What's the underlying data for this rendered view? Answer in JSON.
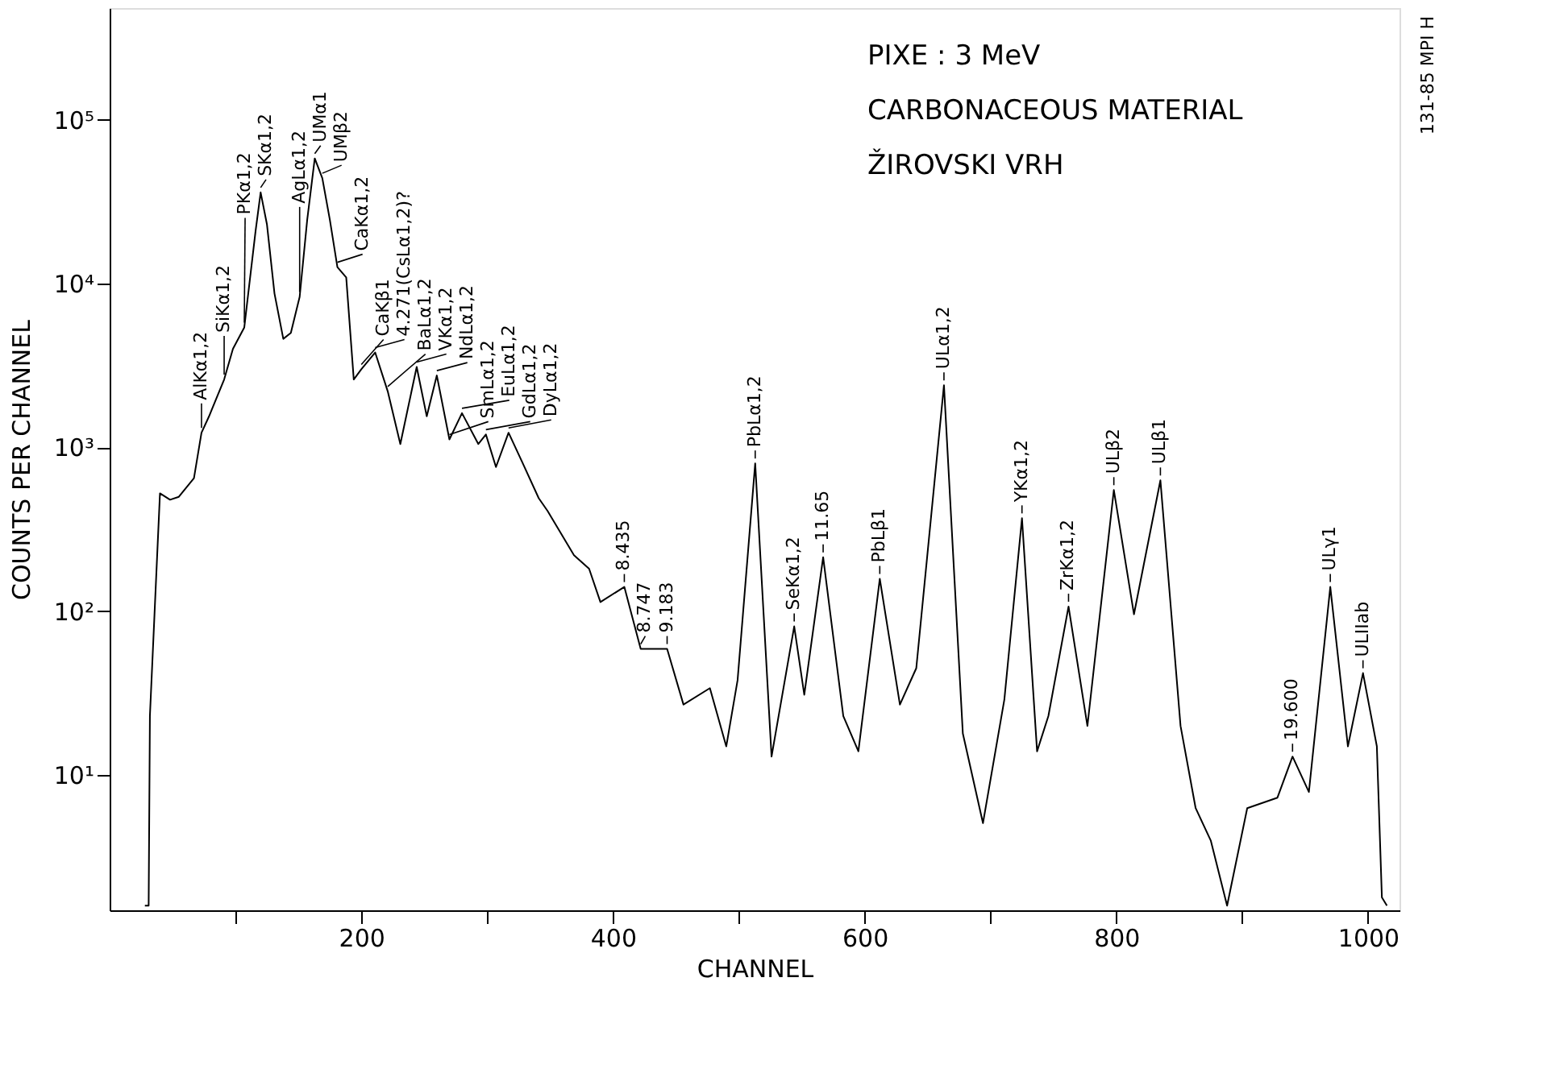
{
  "chart_data": {
    "type": "line",
    "xlabel": "CHANNEL",
    "ylabel": "COUNTS PER CHANNEL",
    "log": "y",
    "grid": false,
    "marker": "none",
    "line_style": "solid",
    "xlim": [
      0,
      1025
    ],
    "ylim": [
      1.5,
      480000
    ],
    "xticks": [
      {
        "value": 100,
        "label": null
      },
      200,
      {
        "value": 300,
        "label": null
      },
      400,
      {
        "value": 500,
        "label": null
      },
      600,
      {
        "value": 700,
        "label": null
      },
      800,
      {
        "value": 900,
        "label": null
      },
      1000
    ],
    "yticks": [
      {
        "value": 10,
        "label": "10¹"
      },
      {
        "value": 100,
        "label": "10²"
      },
      {
        "value": 1000,
        "label": "10³"
      },
      {
        "value": 10000,
        "label": "10⁴"
      },
      {
        "value": 100000,
        "label": "10⁵"
      }
    ],
    "series": [
      {
        "color": "#000000",
        "x": [
          28,
          31,
          32,
          40,
          48,
          55,
          67,
          73,
          79,
          91,
          98,
          107,
          116,
          120,
          125,
          131,
          138,
          144,
          151,
          157,
          163,
          169,
          175,
          181,
          188,
          194,
          200,
          211,
          221,
          231,
          244,
          252,
          260,
          270,
          280,
          293,
          299,
          307,
          317,
          328,
          341,
          348,
          369,
          381,
          390,
          409,
          422,
          443,
          456,
          477,
          490,
          499,
          513,
          526,
          544,
          552,
          567,
          583,
          595,
          612,
          628,
          641,
          663,
          678,
          694,
          711,
          725,
          737,
          746,
          762,
          777,
          798,
          814,
          835,
          851,
          863,
          875,
          888,
          904,
          928,
          940,
          953,
          970,
          984,
          996,
          1007,
          1011,
          1015
        ],
        "values": [
          1.6,
          1.6,
          23,
          525,
          480,
          500,
          650,
          1230,
          1550,
          2600,
          4000,
          5400,
          21000,
          36000,
          23000,
          8700,
          4600,
          5000,
          8300,
          24500,
          58000,
          44000,
          24500,
          12600,
          10900,
          2600,
          3000,
          3800,
          2200,
          1050,
          3100,
          1550,
          2750,
          1120,
          1620,
          1050,
          1200,
          760,
          1230,
          810,
          490,
          410,
          220,
          182,
          114,
          141,
          59,
          59,
          27,
          34,
          15,
          38,
          800,
          13,
          81,
          31,
          214,
          23,
          14,
          158,
          27,
          45,
          2400,
          18,
          5.1,
          29,
          370,
          14,
          23,
          107,
          20,
          550,
          96,
          630,
          20,
          6.3,
          4,
          1.6,
          6.3,
          7.3,
          13,
          7.9,
          141,
          15,
          42,
          15,
          1.8,
          1.6
        ]
      }
    ],
    "annotations": [
      "PIXE : 3 MeV",
      "CARBONACEOUS MATERIAL",
      "ŽIROVSKI VRH",
      "131-85 MPI H",
      {
        "text": "AlKα1,2",
        "x": 73,
        "y": 1230
      },
      {
        "text": "SiKα1,2",
        "x": 91,
        "y": 2600
      },
      {
        "text": "PKα1,2",
        "x": 107,
        "y": 5400
      },
      {
        "text": "SKα1,2",
        "x": 120,
        "y": 36000
      },
      {
        "text": "AgLα1,2",
        "x": 151,
        "y": 8300
      },
      {
        "text": "UMα1",
        "x": 163,
        "y": 58000
      },
      {
        "text": "UMβ2",
        "x": 169,
        "y": 44000
      },
      {
        "text": "CaKα1,2",
        "x": 181,
        "y": 12600
      },
      {
        "text": "CaKβ1",
        "x": 200,
        "y": 3000
      },
      {
        "text": "4.271(CsLα1,2)?",
        "x": 211,
        "y": 3800
      },
      {
        "text": "BaLα1,2",
        "x": 221,
        "y": 2200
      },
      {
        "text": "VKα1,2",
        "x": 244,
        "y": 3100
      },
      {
        "text": "NdLα1,2",
        "x": 260,
        "y": 2750
      },
      {
        "text": "SmLα1,2",
        "x": 270,
        "y": 1120
      },
      {
        "text": "EuLα1,2",
        "x": 280,
        "y": 1620
      },
      {
        "text": "GdLα1,2",
        "x": 299,
        "y": 1200
      },
      {
        "text": "DyLα1,2",
        "x": 317,
        "y": 1230
      },
      {
        "text": "8.435",
        "x": 409,
        "y": 141
      },
      {
        "text": "8.747",
        "x": 422,
        "y": 59
      },
      {
        "text": "9.183",
        "x": 443,
        "y": 59
      },
      {
        "text": "PbLα1,2",
        "x": 513,
        "y": 800
      },
      {
        "text": "SeKα1,2",
        "x": 544,
        "y": 81
      },
      {
        "text": "11.65",
        "x": 567,
        "y": 214
      },
      {
        "text": "PbLβ1",
        "x": 612,
        "y": 158
      },
      {
        "text": "ULα1,2",
        "x": 663,
        "y": 2400
      },
      {
        "text": "YKα1,2",
        "x": 725,
        "y": 370
      },
      {
        "text": "ZrKα1,2",
        "x": 762,
        "y": 107
      },
      {
        "text": "ULβ2",
        "x": 798,
        "y": 550
      },
      {
        "text": "ULβ1",
        "x": 835,
        "y": 630
      },
      {
        "text": "19.600",
        "x": 940,
        "y": 13
      },
      {
        "text": "ULγ1",
        "x": 970,
        "y": 141
      },
      {
        "text": "ULIIab",
        "x": 996,
        "y": 42
      }
    ]
  }
}
